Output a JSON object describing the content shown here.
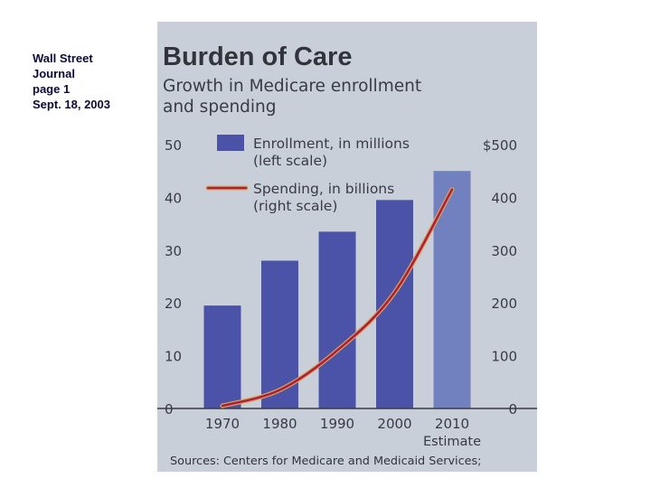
{
  "caption": {
    "line1": "Wall Street",
    "line2": "Journal",
    "line3": "page 1",
    "line4": "Sept. 18, 2003"
  },
  "colors": {
    "paper": "#c9cfd8",
    "bar": "#4a53a8",
    "bar_estimate": "#7180bf",
    "line": "#b01a48",
    "line_glow": "#d6a64a",
    "text": "#3a3a44"
  },
  "chart_data": {
    "type": "bar",
    "title": "Burden of Care",
    "subtitle_line1": "Growth in Medicare enrollment",
    "subtitle_line2": "and spending",
    "categories": [
      "1970",
      "1980",
      "1990",
      "2000",
      "2010"
    ],
    "category_note": "Estimate",
    "left_ticks": [
      "50",
      "40",
      "30",
      "20",
      "10",
      "0"
    ],
    "right_ticks": [
      "$500",
      "400",
      "300",
      "200",
      "100",
      "0"
    ],
    "ylim_left": [
      0,
      50
    ],
    "ylim_right": [
      0,
      500
    ],
    "legend": {
      "bar_line1": "Enrollment, in millions",
      "bar_line2": "(left scale)",
      "line_line1": "Spending, in billions",
      "line_line2": "(right scale)"
    },
    "series": [
      {
        "name": "Enrollment, in millions",
        "axis": "left",
        "kind": "bar",
        "values": [
          19.5,
          28,
          33.5,
          39.5,
          45
        ]
      },
      {
        "name": "Spending, in billions",
        "axis": "right",
        "kind": "line",
        "values": [
          5,
          35,
          110,
          220,
          415
        ]
      }
    ],
    "source": "Sources: Centers for Medicare and Medicaid Services;"
  }
}
